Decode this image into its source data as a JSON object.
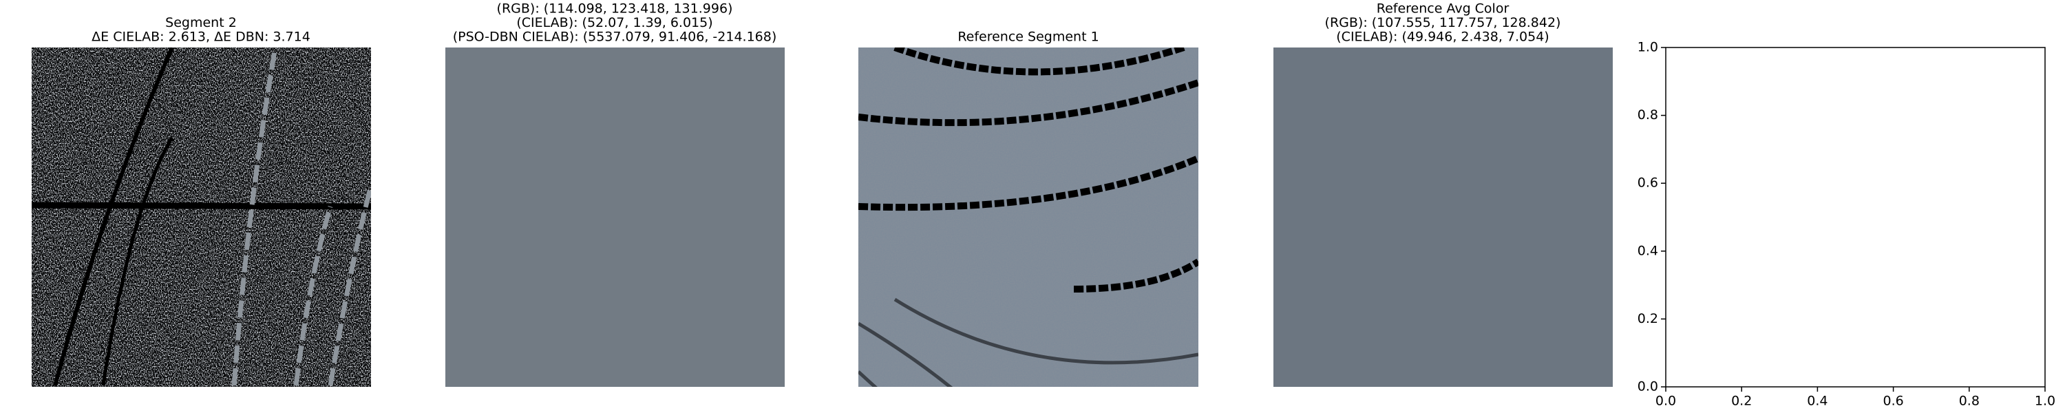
{
  "panels": [
    {
      "title": [
        "Segment 2",
        "ΔE CIELAB: 2.613, ΔE DBN: 3.714"
      ]
    },
    {
      "title": [
        "(RGB): (114.098, 123.418, 131.996)",
        "(CIELAB): (52.07, 1.39, 6.015)",
        "(PSO-DBN CIELAB): (5537.079, 91.406, -214.168)"
      ],
      "color": "#727b84"
    },
    {
      "title": [
        "Reference Segment 1"
      ]
    },
    {
      "title": [
        "Reference Avg Color",
        "(RGB): (107.555, 117.757, 128.842)",
        "(CIELAB): (49.946, 2.438, 7.054)"
      ],
      "color": "#6c7681"
    }
  ],
  "chart_data": {
    "type": "empty",
    "xlim": [
      0,
      1
    ],
    "ylim": [
      0,
      1
    ],
    "xticks": [
      {
        "value": 0,
        "label": "0.0"
      },
      {
        "value": 0.2,
        "label": "0.2"
      },
      {
        "value": 0.4,
        "label": "0.4"
      },
      {
        "value": 0.6,
        "label": "0.6"
      },
      {
        "value": 0.8,
        "label": "0.8"
      },
      {
        "value": 1,
        "label": "1.0"
      }
    ],
    "yticks": [
      {
        "value": 0,
        "label": "0.0"
      },
      {
        "value": 0.2,
        "label": "0.2"
      },
      {
        "value": 0.4,
        "label": "0.4"
      },
      {
        "value": 0.6,
        "label": "0.6"
      },
      {
        "value": 0.8,
        "label": "0.8"
      },
      {
        "value": 1,
        "label": "1.0"
      }
    ]
  }
}
